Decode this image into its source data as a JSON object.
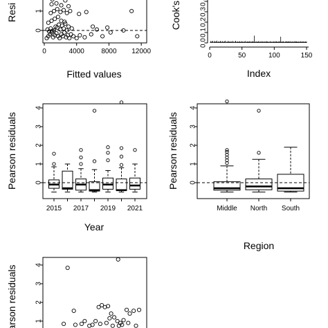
{
  "chart_data": [
    {
      "id": "fitted",
      "type": "scatter",
      "xlabel": "Fitted values",
      "ylabel": "Resi",
      "xticks": [
        "0",
        "4000",
        "8000",
        "12000"
      ],
      "yticks": [
        "0",
        "1"
      ],
      "xlim": [
        0,
        12500
      ],
      "ylim": [
        -0.5,
        3.0
      ],
      "reference_line": 0,
      "points": [
        [
          300,
          -0.4
        ],
        [
          500,
          -0.3
        ],
        [
          700,
          -0.2
        ],
        [
          900,
          -0.1
        ],
        [
          1100,
          -0.35
        ],
        [
          1300,
          -0.25
        ],
        [
          1500,
          -0.15
        ],
        [
          1700,
          -0.3
        ],
        [
          1900,
          -0.4
        ],
        [
          2100,
          -0.2
        ],
        [
          2300,
          -0.3
        ],
        [
          2500,
          -0.1
        ],
        [
          2700,
          -0.35
        ],
        [
          2900,
          -0.25
        ],
        [
          3100,
          -0.4
        ],
        [
          3300,
          -0.2
        ],
        [
          3600,
          -0.3
        ],
        [
          4000,
          -0.4
        ],
        [
          4400,
          -0.25
        ],
        [
          5000,
          -0.35
        ],
        [
          400,
          0.05
        ],
        [
          800,
          0.1
        ],
        [
          1200,
          0.0
        ],
        [
          1600,
          0.15
        ],
        [
          2000,
          0.05
        ],
        [
          2400,
          0.1
        ],
        [
          2800,
          0.0
        ],
        [
          600,
          -0.05
        ],
        [
          1000,
          -0.02
        ],
        [
          1400,
          0.2
        ],
        [
          1800,
          0.3
        ],
        [
          2200,
          0.25
        ],
        [
          2600,
          0.35
        ],
        [
          3000,
          0.2
        ],
        [
          3400,
          0.1
        ],
        [
          500,
          0.4
        ],
        [
          900,
          0.5
        ],
        [
          1300,
          0.6
        ],
        [
          1700,
          0.7
        ],
        [
          2100,
          0.5
        ],
        [
          2500,
          0.45
        ],
        [
          800,
          0.9
        ],
        [
          1200,
          1.0
        ],
        [
          1600,
          1.1
        ],
        [
          2000,
          0.95
        ],
        [
          2400,
          1.05
        ],
        [
          2800,
          0.9
        ],
        [
          3200,
          1.0
        ],
        [
          4300,
          0.85
        ],
        [
          5200,
          0.95
        ],
        [
          900,
          1.35
        ],
        [
          1500,
          1.4
        ],
        [
          2100,
          1.3
        ],
        [
          3000,
          1.25
        ],
        [
          1000,
          1.6
        ],
        [
          1800,
          1.7
        ],
        [
          2600,
          1.55
        ],
        [
          800,
          2.0
        ],
        [
          1400,
          1.9
        ],
        [
          6500,
          0.05
        ],
        [
          7200,
          -0.3
        ],
        [
          8200,
          -0.1
        ],
        [
          11500,
          -0.3
        ],
        [
          10800,
          1.0
        ],
        [
          9800,
          0.0
        ],
        [
          7800,
          0.15
        ],
        [
          5800,
          -0.2
        ],
        [
          6000,
          0.2
        ]
      ]
    },
    {
      "id": "cooks",
      "type": "bar",
      "xlabel": "Index",
      "ylabel": "Cook's",
      "xticks": [
        "0",
        "50",
        "100",
        "150"
      ],
      "yticks": [
        "0.0",
        "0.1",
        "0.2",
        "0.3",
        "0.4"
      ],
      "xlim": [
        0,
        160
      ],
      "ylim": [
        0,
        0.5
      ],
      "values": [
        0.01,
        0.02,
        0.008,
        0.015,
        0.02,
        0.005,
        0.012,
        0.018,
        0.009,
        0.014,
        0.022,
        0.007,
        0.011,
        0.016,
        0.006,
        0.013,
        0.02,
        0.01,
        0.008,
        0.017,
        0.012,
        0.009,
        0.015,
        0.021,
        0.006,
        0.011,
        0.014,
        0.008,
        0.019,
        0.01,
        0.013,
        0.007,
        0.016,
        0.012,
        0.009,
        0.018,
        0.011,
        0.006,
        0.014,
        0.02,
        0.01,
        0.008,
        0.015,
        0.012,
        0.007,
        0.017,
        0.013,
        0.009,
        0.011,
        0.016,
        0.012,
        0.008,
        0.014,
        0.01,
        0.019,
        0.006,
        0.013,
        0.011,
        0.015,
        0.009,
        0.012,
        0.017,
        0.008,
        0.014,
        0.01,
        0.013,
        0.016,
        0.011,
        0.07,
        0.009,
        0.012,
        0.015,
        0.008,
        0.013,
        0.01,
        0.018,
        0.007,
        0.012,
        0.014,
        0.009,
        0.016,
        0.011,
        0.013,
        0.008,
        0.015,
        0.01,
        0.012,
        0.017,
        0.009,
        0.014,
        0.011,
        0.006,
        0.013,
        0.016,
        0.01,
        0.012,
        0.008,
        0.015,
        0.011,
        0.014,
        0.009,
        0.013,
        0.017,
        0.01,
        0.012,
        0.008,
        0.016,
        0.011,
        0.014,
        0.06,
        0.009,
        0.013,
        0.012,
        0.015,
        0.01,
        0.008,
        0.014,
        0.011,
        0.017,
        0.009,
        0.013,
        0.012,
        0.015,
        0.01,
        0.016,
        0.008,
        0.013,
        0.011,
        0.014,
        0.009,
        0.012,
        0.017,
        0.01,
        0.013,
        0.015,
        0.008,
        0.011,
        0.014,
        0.012,
        0.009,
        0.016,
        0.01,
        0.013,
        0.011,
        0.015,
        0.008,
        0.012,
        0.014,
        0.01,
        0.013
      ]
    },
    {
      "id": "year",
      "type": "box",
      "xlabel": "Year",
      "ylabel": "Pearson residuals",
      "categories": [
        "2015",
        "2016",
        "2017",
        "2018",
        "2019",
        "2020",
        "2021"
      ],
      "xticks": [
        "2015",
        "2017",
        "2019",
        "2021"
      ],
      "yticks": [
        "0",
        "1",
        "2",
        "3",
        "4"
      ],
      "ylim": [
        -0.55,
        4.4
      ],
      "reference_line": 0,
      "boxes": [
        {
          "low": -0.5,
          "q1": -0.3,
          "median": -0.1,
          "q3": 0.15,
          "high": 0.85,
          "outliers": [
            1.0,
            1.55
          ]
        },
        {
          "low": -0.5,
          "q1": -0.35,
          "median": -0.3,
          "q3": 0.62,
          "high": 1.0,
          "outliers": []
        },
        {
          "low": -0.5,
          "q1": -0.4,
          "median": -0.1,
          "q3": 0.2,
          "high": 0.75,
          "outliers": [
            1.0,
            1.35,
            1.75
          ]
        },
        {
          "low": -0.5,
          "q1": -0.45,
          "median": -0.4,
          "q3": 0.05,
          "high": 0.7,
          "outliers": [
            1.15,
            3.85
          ]
        },
        {
          "low": -0.5,
          "q1": -0.35,
          "median": -0.1,
          "q3": 0.25,
          "high": 0.65,
          "outliers": [
            1.2,
            1.6,
            1.9
          ]
        },
        {
          "low": -0.5,
          "q1": -0.42,
          "median": -0.4,
          "q3": 0.2,
          "high": 0.8,
          "outliers": [
            0.95,
            1.4,
            1.85,
            4.3
          ]
        },
        {
          "low": -0.5,
          "q1": -0.35,
          "median": -0.15,
          "q3": 0.25,
          "high": 1.0,
          "outliers": [
            1.75
          ]
        }
      ]
    },
    {
      "id": "region",
      "type": "box",
      "xlabel": "Region",
      "ylabel": "Pearson residuals",
      "categories": [
        "Middle",
        "North",
        "South"
      ],
      "xticks": [
        "Middle",
        "North",
        "South"
      ],
      "yticks": [
        "0",
        "1",
        "2",
        "3",
        "4"
      ],
      "ylim": [
        -0.55,
        4.4
      ],
      "reference_line": 0,
      "boxes": [
        {
          "low": -0.5,
          "q1": -0.4,
          "median": -0.3,
          "q3": 0.05,
          "high": 0.9,
          "outliers": [
            1.05,
            1.2,
            1.35,
            1.5,
            1.65,
            1.75,
            4.35
          ]
        },
        {
          "low": -0.5,
          "q1": -0.38,
          "median": -0.2,
          "q3": 0.2,
          "high": 1.25,
          "outliers": [
            1.6,
            3.85
          ]
        },
        {
          "low": -0.5,
          "q1": -0.45,
          "median": -0.3,
          "q3": 0.45,
          "high": 1.9,
          "outliers": []
        }
      ]
    },
    {
      "id": "partial",
      "type": "scatter",
      "xlabel": "",
      "ylabel": "arson residuals",
      "yticks": [
        "1",
        "2",
        "3",
        "4"
      ],
      "ylim": [
        0.65,
        4.55
      ],
      "points": [
        [
          30,
          3.85
        ],
        [
          95,
          4.3
        ],
        [
          25,
          0.85
        ],
        [
          38,
          1.55
        ],
        [
          48,
          0.85
        ],
        [
          58,
          0.75
        ],
        [
          62,
          0.8
        ],
        [
          70,
          1.75
        ],
        [
          74,
          1.85
        ],
        [
          78,
          1.75
        ],
        [
          82,
          1.8
        ],
        [
          86,
          1.4
        ],
        [
          90,
          1.2
        ],
        [
          94,
          1.0
        ],
        [
          98,
          0.9
        ],
        [
          102,
          1.05
        ],
        [
          106,
          1.6
        ],
        [
          110,
          1.4
        ],
        [
          115,
          1.55
        ],
        [
          122,
          1.6
        ],
        [
          66,
          1.0
        ],
        [
          72,
          0.85
        ],
        [
          80,
          0.9
        ],
        [
          88,
          0.75
        ],
        [
          100,
          0.8
        ],
        [
          108,
          0.9
        ],
        [
          118,
          0.75
        ],
        [
          40,
          0.8
        ],
        [
          52,
          1.0
        ],
        [
          84,
          1.15
        ],
        [
          96,
          0.75
        ]
      ]
    }
  ]
}
